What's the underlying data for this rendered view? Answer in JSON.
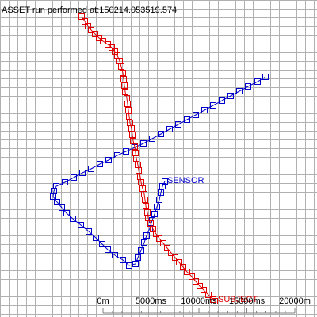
{
  "header": {
    "title": "ASSET run performed at:150214.053519.574"
  },
  "colors": {
    "subject": "#e00000",
    "sensor": "#0000cc",
    "text": "#000000",
    "grid": "#b0b0b0",
    "scalebar": "#808080",
    "background": "#ffffff"
  },
  "chart_data": {
    "type": "scatter",
    "grid": true,
    "series": [
      {
        "name": "SENSOR",
        "points": [
          [
            335,
            97
          ],
          [
            325,
            103
          ],
          [
            313,
            109
          ],
          [
            302,
            115
          ],
          [
            291,
            121
          ],
          [
            280,
            127
          ],
          [
            269,
            133
          ],
          [
            258,
            139
          ],
          [
            247,
            145
          ],
          [
            236,
            151
          ],
          [
            225,
            157
          ],
          [
            214,
            163
          ],
          [
            203,
            169
          ],
          [
            192,
            175
          ],
          [
            181,
            181
          ],
          [
            170,
            186
          ],
          [
            159,
            191
          ],
          [
            148,
            196
          ],
          [
            137,
            202
          ],
          [
            126,
            207
          ],
          [
            115,
            213
          ],
          [
            104,
            218
          ],
          [
            93,
            224
          ],
          [
            82,
            230
          ],
          [
            71,
            235
          ],
          [
            68,
            241
          ],
          [
            67,
            248
          ],
          [
            72,
            255
          ],
          [
            78,
            262
          ],
          [
            84,
            269
          ],
          [
            92,
            276
          ],
          [
            102,
            284
          ],
          [
            112,
            292
          ],
          [
            121,
            300
          ],
          [
            129,
            308
          ],
          [
            136,
            315
          ],
          [
            145,
            322
          ],
          [
            155,
            328
          ],
          [
            163,
            335
          ],
          [
            171,
            333
          ],
          [
            174,
            325
          ],
          [
            178,
            316
          ],
          [
            182,
            306
          ],
          [
            185,
            297
          ],
          [
            189,
            288
          ],
          [
            192,
            278
          ],
          [
            195,
            270
          ],
          [
            198,
            261
          ],
          [
            201,
            252
          ],
          [
            203,
            243
          ],
          [
            205,
            235
          ],
          [
            208,
            229
          ]
        ]
      },
      {
        "name": "SUBJECT",
        "points": [
          [
            103,
            21
          ],
          [
            107,
            27
          ],
          [
            111,
            33
          ],
          [
            115,
            38
          ],
          [
            120,
            43
          ],
          [
            125,
            48
          ],
          [
            130,
            52
          ],
          [
            136,
            56
          ],
          [
            141,
            60
          ],
          [
            145,
            65
          ],
          [
            148,
            70
          ],
          [
            151,
            77
          ],
          [
            153,
            84
          ],
          [
            155,
            92
          ],
          [
            156,
            100
          ],
          [
            157,
            108
          ],
          [
            158,
            116
          ],
          [
            160,
            124
          ],
          [
            161,
            131
          ],
          [
            162,
            139
          ],
          [
            163,
            147
          ],
          [
            164,
            155
          ],
          [
            166,
            162
          ],
          [
            167,
            170
          ],
          [
            168,
            178
          ],
          [
            170,
            185
          ],
          [
            171,
            193
          ],
          [
            172,
            200
          ],
          [
            174,
            208
          ],
          [
            175,
            215
          ],
          [
            177,
            223
          ],
          [
            178,
            230
          ],
          [
            180,
            238
          ],
          [
            182,
            245
          ],
          [
            183,
            252
          ],
          [
            184,
            260
          ],
          [
            186,
            268
          ],
          [
            187,
            275
          ],
          [
            190,
            282
          ],
          [
            193,
            289
          ],
          [
            197,
            295
          ],
          [
            201,
            301
          ],
          [
            206,
            307
          ],
          [
            211,
            313
          ],
          [
            216,
            319
          ],
          [
            221,
            325
          ],
          [
            226,
            331
          ],
          [
            231,
            337
          ],
          [
            236,
            343
          ],
          [
            242,
            349
          ],
          [
            247,
            355
          ],
          [
            252,
            361
          ],
          [
            257,
            366
          ],
          [
            263,
            372
          ],
          [
            269,
            378
          ],
          [
            271,
            380
          ]
        ]
      }
    ],
    "labels": {
      "sensor": "SENSOR",
      "subject": "SUBJECT"
    },
    "scalebar": {
      "ticks": [
        "0m",
        "5000ms",
        "10000ms",
        "15000ms",
        "20000m"
      ]
    }
  }
}
